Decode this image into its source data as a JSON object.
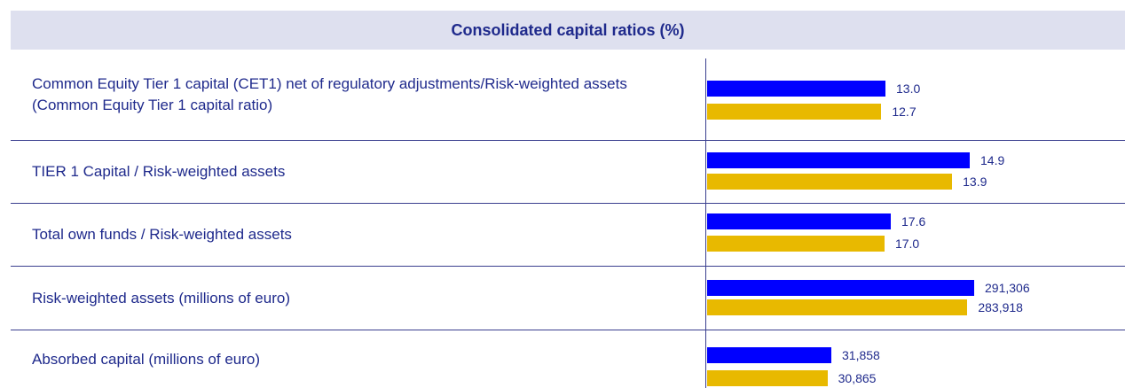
{
  "chart_data": {
    "type": "bar",
    "title": "Consolidated capital ratios (%)",
    "categories": [
      "Common Equity Tier 1 capital (CET1) net of regulatory adjustments/Risk-weighted assets (Common Equity Tier 1 capital ratio)",
      "TIER 1 Capital  / Risk-weighted assets",
      "Total own funds  / Risk-weighted assets",
      "Risk-weighted assets (millions of euro)",
      "Absorbed capital (millions of euro)"
    ],
    "series": [
      {
        "color": "#0000ff",
        "values": [
          13.0,
          14.9,
          17.6,
          291306,
          31858
        ],
        "value_labels": [
          "13.0",
          "14.9",
          "17.6",
          "291,306",
          "31,858"
        ]
      },
      {
        "color": "#e8b900",
        "values": [
          12.7,
          13.9,
          17.0,
          283918,
          30865
        ],
        "value_labels": [
          "12.7",
          "13.9",
          "17.0",
          "283,918",
          "30,865"
        ]
      }
    ]
  }
}
